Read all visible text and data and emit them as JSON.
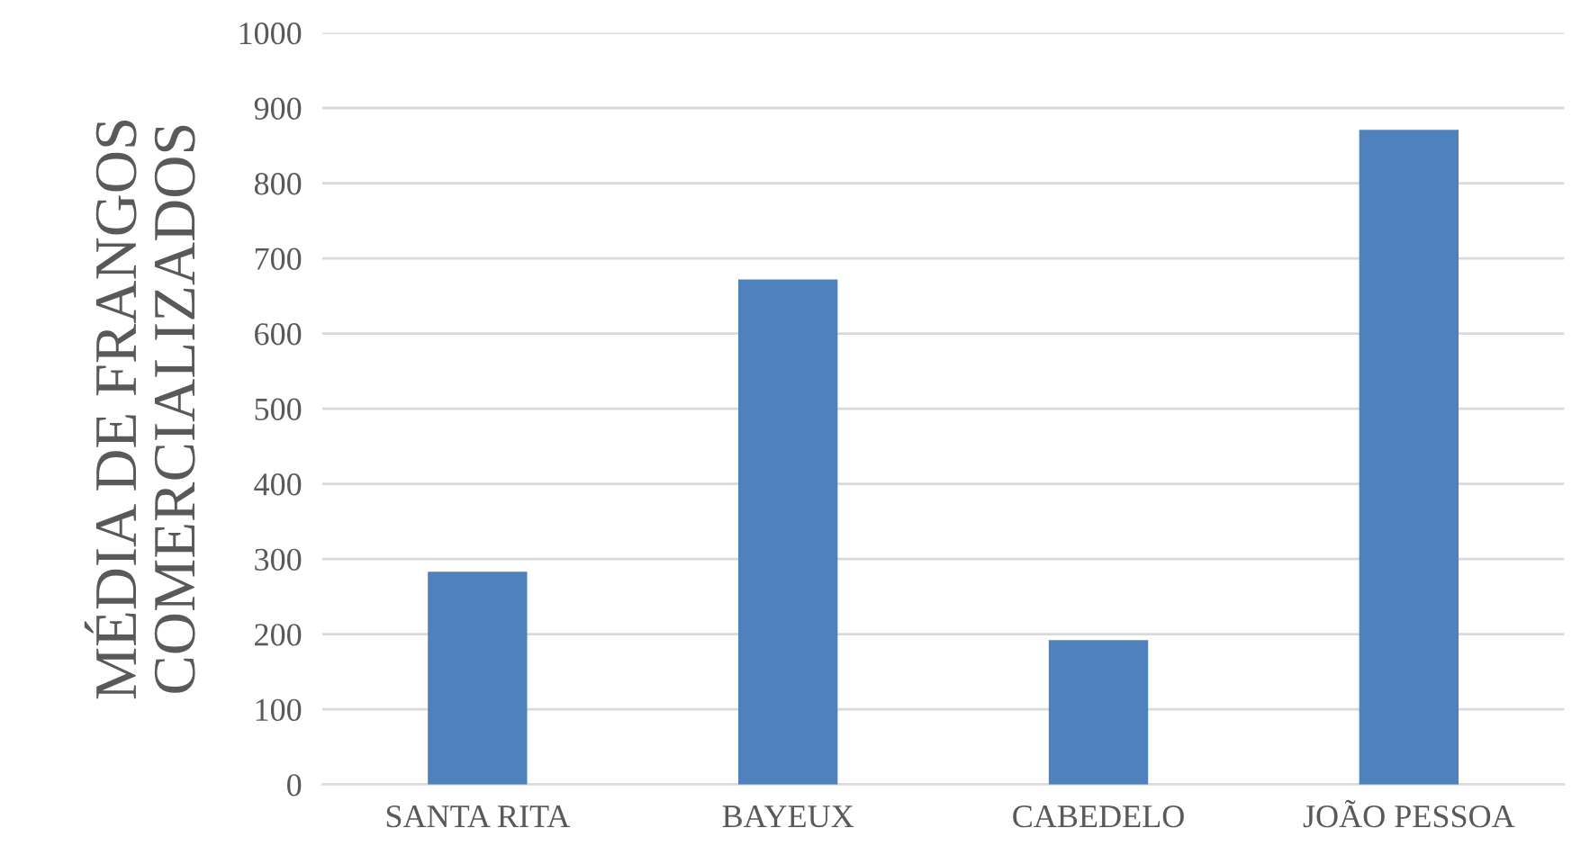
{
  "chart_data": {
    "type": "bar",
    "ylabel": "MÉDIA DE FRANGOS COMERCIALIZADOS",
    "categories": [
      "SANTA RITA",
      "BAYEUX",
      "CABEDELO",
      "JOÃO PESSOA"
    ],
    "values": [
      283,
      672,
      192,
      871
    ],
    "color": "#4f81bd",
    "ylim": [
      0,
      1000
    ],
    "yticks": [
      0,
      100,
      200,
      300,
      400,
      500,
      600,
      700,
      800,
      900,
      1000
    ],
    "grid": "y"
  }
}
